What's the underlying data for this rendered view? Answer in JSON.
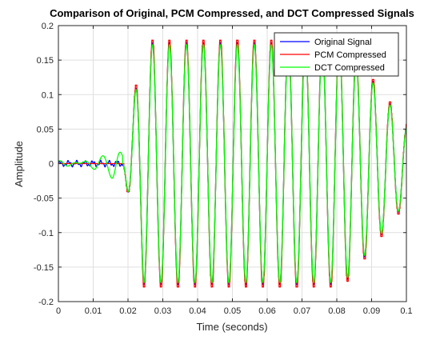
{
  "chart_data": {
    "type": "line",
    "title": "Comparison of Original, PCM Compressed, and DCT Compressed Signals",
    "xlabel": "Time (seconds)",
    "ylabel": "Amplitude",
    "xlim": [
      0,
      0.1
    ],
    "ylim": [
      -0.2,
      0.2
    ],
    "xticks": [
      0,
      0.01,
      0.02,
      0.03,
      0.04,
      0.05,
      0.06,
      0.07,
      0.08,
      0.09,
      0.1
    ],
    "xtick_labels": [
      "0",
      "0.01",
      "0.02",
      "0.03",
      "0.04",
      "0.05",
      "0.06",
      "0.07",
      "0.08",
      "0.09",
      "0.1"
    ],
    "yticks": [
      -0.2,
      -0.15,
      -0.1,
      -0.05,
      0,
      0.05,
      0.1,
      0.15,
      0.2
    ],
    "ytick_labels": [
      "-0.2",
      "-0.15",
      "-0.1",
      "-0.05",
      "0",
      "0.05",
      "0.1",
      "0.15",
      "0.2"
    ],
    "grid": true,
    "legend_position": "top-right",
    "signal_model": {
      "onset_time": 0.0185,
      "frequency_hz": 205,
      "peak_amplitude": 0.175,
      "pre_onset_noise_amplitude": 0.003,
      "end_amplitude": 0.055
    },
    "sample_points": {
      "x": [
        0,
        0.005,
        0.012,
        0.0185,
        0.021,
        0.023,
        0.03,
        0.04,
        0.05,
        0.06,
        0.07,
        0.08,
        0.085,
        0.09,
        0.095,
        0.1
      ],
      "y": [
        0,
        0.005,
        0.002,
        0,
        -0.075,
        0.13,
        -0.165,
        0.175,
        -0.17,
        0.172,
        -0.17,
        0.168,
        0.16,
        -0.135,
        0.1,
        -0.02
      ]
    },
    "series": [
      {
        "name": "Original Signal",
        "color": "#0000ff",
        "variant": "original"
      },
      {
        "name": "PCM Compressed",
        "color": "#ff0000",
        "variant": "pcm"
      },
      {
        "name": "DCT Compressed",
        "color": "#00ff00",
        "variant": "dct"
      }
    ]
  }
}
